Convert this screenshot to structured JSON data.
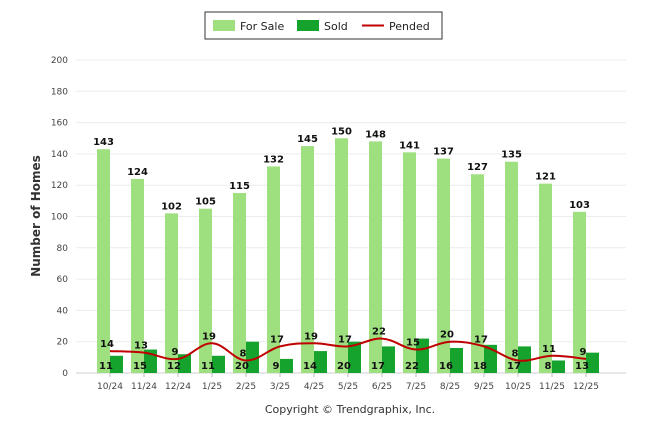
{
  "chart_data": {
    "type": "bar",
    "ylabel": "Number of Homes",
    "ylim": [
      0,
      200
    ],
    "yticks": [
      "0",
      "20",
      "40",
      "60",
      "80",
      "100",
      "120",
      "140",
      "160",
      "180",
      "200"
    ],
    "categories": [
      "10/24",
      "11/24",
      "12/24",
      "1/25",
      "2/25",
      "3/25",
      "4/25",
      "5/25",
      "6/25",
      "7/25",
      "8/25",
      "9/25",
      "10/25",
      "11/25",
      "12/25"
    ],
    "series": [
      {
        "name": "For Sale",
        "type": "bar",
        "color": "#9ee07f",
        "values": [
          143,
          124,
          102,
          105,
          115,
          132,
          145,
          150,
          148,
          141,
          137,
          127,
          135,
          121,
          103
        ]
      },
      {
        "name": "Sold",
        "type": "bar",
        "color": "#15a32e",
        "values": [
          11,
          15,
          12,
          11,
          20,
          9,
          14,
          20,
          17,
          22,
          16,
          18,
          17,
          8,
          13
        ]
      },
      {
        "name": "Pended",
        "type": "line",
        "color": "#c00000",
        "values": [
          14,
          13,
          9,
          19,
          8,
          17,
          19,
          17,
          22,
          15,
          20,
          17,
          8,
          11,
          9
        ]
      }
    ],
    "grid": true,
    "legend": "top-center"
  },
  "footer": {
    "copyright": "Copyright © Trendgraphix, Inc."
  }
}
